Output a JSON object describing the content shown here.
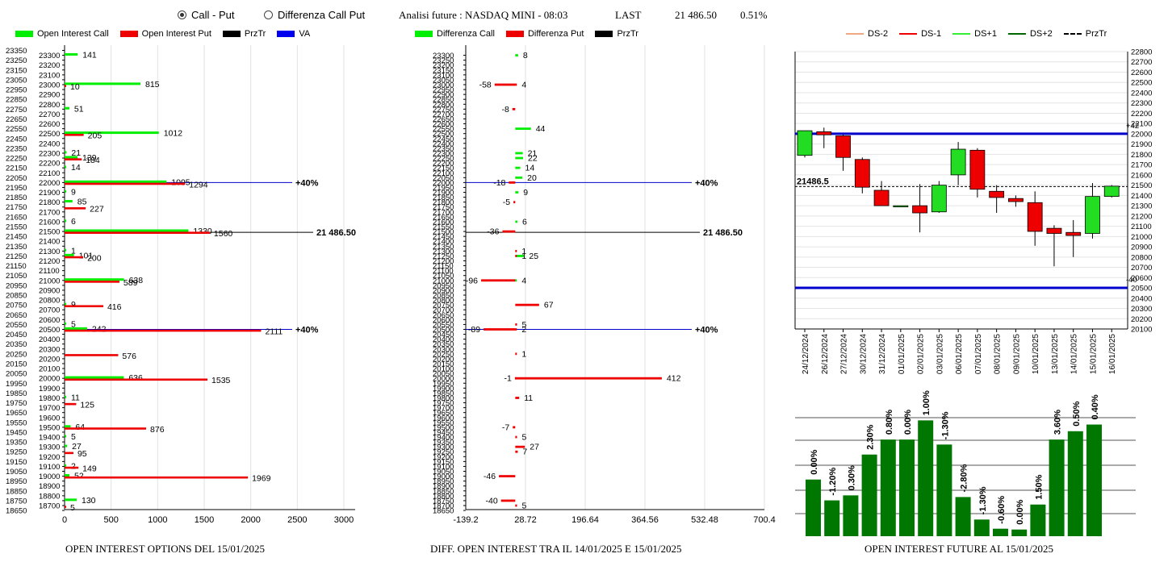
{
  "header": {
    "radio_call_put": "Call - Put",
    "radio_diff": "Differenza Call Put",
    "analysis_title": "Analisi future : NASDAQ MINI - 08:03",
    "last_label": "LAST",
    "last_value": "21 486.50",
    "last_change": "0.51%"
  },
  "legends": {
    "left": [
      {
        "label": "Open Interest Call",
        "color": "#00ee00"
      },
      {
        "label": "Open Interest Put",
        "color": "#ee0000"
      },
      {
        "label": "PrzTr",
        "color": "#000000"
      },
      {
        "label": "VA",
        "color": "#0000ee"
      }
    ],
    "middle": [
      {
        "label": "Differenza Call",
        "color": "#00ee00"
      },
      {
        "label": "Differenza Put",
        "color": "#ee0000"
      },
      {
        "label": "PrzTr",
        "color": "#000000"
      }
    ],
    "right": [
      {
        "label": "DS-2",
        "color": "#f4a582"
      },
      {
        "label": "DS-1",
        "color": "#ee0000"
      },
      {
        "label": "DS+1",
        "color": "#33ee33"
      },
      {
        "label": "DS+2",
        "color": "#006600"
      },
      {
        "label": "PrzTr",
        "color": "#000000"
      }
    ]
  },
  "footer": {
    "left": "OPEN INTEREST OPTIONS DEL 15/01/2025",
    "middle": "DIFF. OPEN INTEREST TRA IL 14/01/2025 E 15/01/2025",
    "right": "OPEN INTEREST FUTURE AL 15/01/2025"
  },
  "chart_data": [
    {
      "type": "bar",
      "orientation": "horizontal",
      "strikes": [
        "23350",
        "23300",
        "23250",
        "23200",
        "23150",
        "23100",
        "23050",
        "23000",
        "22950",
        "22900",
        "22850",
        "22800",
        "22750",
        "22700",
        "22650",
        "22600",
        "22550",
        "22500",
        "22450",
        "22400",
        "22350",
        "22300",
        "22250",
        "22200",
        "22150",
        "22100",
        "22050",
        "22000",
        "21950",
        "21900",
        "21850",
        "21800",
        "21750",
        "21700",
        "21650",
        "21600",
        "21550",
        "21500",
        "21450",
        "21400",
        "21350",
        "21300",
        "21250",
        "21200",
        "21150",
        "21100",
        "21050",
        "21000",
        "20950",
        "20900",
        "20850",
        "20800",
        "20750",
        "20700",
        "20650",
        "20600",
        "20550",
        "20500",
        "20450",
        "20400",
        "20350",
        "20300",
        "20250",
        "20200",
        "20150",
        "20100",
        "20050",
        "20000",
        "19950",
        "19900",
        "19850",
        "19800",
        "19750",
        "19700",
        "19650",
        "19600",
        "19550",
        "19500",
        "19450",
        "19400",
        "19350",
        "19300",
        "19250",
        "19200",
        "19150",
        "19100",
        "19050",
        "19000",
        "18950",
        "18900",
        "18850",
        "18800",
        "18750",
        "18700",
        "18650"
      ],
      "calls": [
        {
          "strike": "23300",
          "value": 141
        },
        {
          "strike": "23000",
          "value": 815
        },
        {
          "strike": "22750",
          "value": 51
        },
        {
          "strike": "22500",
          "value": 1012
        },
        {
          "strike": "22300",
          "value": 21
        },
        {
          "strike": "22250",
          "value": 139
        },
        {
          "strike": "22150",
          "value": 14
        },
        {
          "strike": "22000",
          "value": 1095
        },
        {
          "strike": "21900",
          "value": 9
        },
        {
          "strike": "21800",
          "value": 85
        },
        {
          "strike": "21600",
          "value": 6
        },
        {
          "strike": "21500",
          "value": 1330
        },
        {
          "strike": "21300",
          "value": 1
        },
        {
          "strike": "21250",
          "value": 101
        },
        {
          "strike": "21000",
          "value": 638
        },
        {
          "strike": "20750",
          "value": 9
        },
        {
          "strike": "20550",
          "value": 5
        },
        {
          "strike": "20500",
          "value": 242
        },
        {
          "strike": "20000",
          "value": 636
        },
        {
          "strike": "19800",
          "value": 11
        },
        {
          "strike": "19500",
          "value": 64
        },
        {
          "strike": "19400",
          "value": 5
        },
        {
          "strike": "19300",
          "value": 27
        },
        {
          "strike": "19100",
          "value": 2
        },
        {
          "strike": "19000",
          "value": 52
        },
        {
          "strike": "18750",
          "value": 130
        }
      ],
      "puts": [
        {
          "strike": "23000",
          "value": 10
        },
        {
          "strike": "22500",
          "value": 205
        },
        {
          "strike": "22250",
          "value": 184
        },
        {
          "strike": "22000",
          "value": 1294
        },
        {
          "strike": "21750",
          "value": 227
        },
        {
          "strike": "21500",
          "value": 1560
        },
        {
          "strike": "21250",
          "value": 200
        },
        {
          "strike": "21000",
          "value": 589
        },
        {
          "strike": "20750",
          "value": 416
        },
        {
          "strike": "20500",
          "value": 2111
        },
        {
          "strike": "20250",
          "value": 576
        },
        {
          "strike": "20000",
          "value": 1535
        },
        {
          "strike": "19750",
          "value": 125
        },
        {
          "strike": "19500",
          "value": 876
        },
        {
          "strike": "19250",
          "value": 95
        },
        {
          "strike": "19100",
          "value": 149
        },
        {
          "strike": "19000",
          "value": 1969
        },
        {
          "strike": "18700",
          "value": 5
        }
      ],
      "price_line": {
        "strike": "21500",
        "label": "21 486.50"
      },
      "va_lines": [
        {
          "strike": "22000",
          "label": "40%"
        },
        {
          "strike": "20500",
          "label": "40%"
        }
      ],
      "xlim": [
        0,
        3000
      ],
      "xticks": [
        "0",
        "500",
        "1000",
        "1500",
        "2000",
        "2500",
        "3000"
      ]
    },
    {
      "type": "bar",
      "orientation": "horizontal",
      "calls": [
        {
          "strike": "23300",
          "value": 8
        },
        {
          "strike": "22550",
          "value": 44
        },
        {
          "strike": "22300",
          "value": 21
        },
        {
          "strike": "22250",
          "value": 22
        },
        {
          "strike": "22150",
          "value": 14
        },
        {
          "strike": "22050",
          "value": 20
        },
        {
          "strike": "21900",
          "value": 9
        },
        {
          "strike": "21600",
          "value": 6
        },
        {
          "strike": "21250",
          "value": 25
        },
        {
          "strike": "21000",
          "value": 4
        }
      ],
      "puts": [
        {
          "strike": "23000",
          "value": -58
        },
        {
          "strike": "23000",
          "value": 4
        },
        {
          "strike": "22750",
          "value": -8
        },
        {
          "strike": "22000",
          "value": -18
        },
        {
          "strike": "21800",
          "value": -5
        },
        {
          "strike": "21500",
          "value": -36
        },
        {
          "strike": "21300",
          "value": 1
        },
        {
          "strike": "21250",
          "value": 1
        },
        {
          "strike": "21000",
          "value": -96
        },
        {
          "strike": "20750",
          "value": 67
        },
        {
          "strike": "20550",
          "value": 5
        },
        {
          "strike": "20500",
          "value": -89
        },
        {
          "strike": "20500",
          "value": 2
        },
        {
          "strike": "20250",
          "value": 1
        },
        {
          "strike": "20000",
          "value": 412
        },
        {
          "strike": "20000",
          "value": -1
        },
        {
          "strike": "19800",
          "value": 11
        },
        {
          "strike": "19500",
          "value": -7
        },
        {
          "strike": "19400",
          "value": 5
        },
        {
          "strike": "19300",
          "value": 27
        },
        {
          "strike": "19250",
          "value": 7
        },
        {
          "strike": "19000",
          "value": -46
        },
        {
          "strike": "18750",
          "value": -40
        },
        {
          "strike": "18700",
          "value": 5
        }
      ],
      "price_line": {
        "strike": "21500",
        "label": "21 486.50"
      },
      "va_lines": [
        {
          "strike": "22000",
          "label": "40%"
        },
        {
          "strike": "20500",
          "label": "40%"
        }
      ],
      "xlim": [
        -139.2,
        700.4
      ],
      "xticks": [
        "-139.2",
        "28.72",
        "196.64",
        "364.56",
        "532.48",
        "700.4"
      ]
    },
    {
      "type": "candlestick",
      "dates": [
        "24/12/2024",
        "26/12/2024",
        "27/12/2024",
        "30/12/2024",
        "31/12/2024",
        "01/01/2025",
        "02/01/2025",
        "03/01/2025",
        "06/01/2025",
        "07/01/2025",
        "08/01/2025",
        "09/01/2025",
        "10/01/2025",
        "13/01/2025",
        "14/01/2025",
        "15/01/2025",
        "16/01/2025"
      ],
      "ohlc": [
        [
          21790,
          22030,
          21770,
          22030
        ],
        [
          22020,
          22060,
          21860,
          21990
        ],
        [
          21980,
          21990,
          21640,
          21770
        ],
        [
          21750,
          21770,
          21420,
          21480
        ],
        [
          21450,
          21540,
          21320,
          21300
        ],
        [
          21300,
          21300,
          21290,
          21300
        ],
        [
          21300,
          21510,
          21040,
          21230
        ],
        [
          21240,
          21540,
          21230,
          21500
        ],
        [
          21600,
          21920,
          21500,
          21850
        ],
        [
          21840,
          21860,
          21380,
          21460
        ],
        [
          21440,
          21500,
          21230,
          21380
        ],
        [
          21370,
          21400,
          21290,
          21340
        ],
        [
          21330,
          21440,
          20910,
          21050
        ],
        [
          21080,
          21110,
          20710,
          21030
        ],
        [
          21040,
          21160,
          20800,
          21010
        ],
        [
          21030,
          21520,
          20980,
          21390
        ],
        [
          21390,
          21500,
          21380,
          21490
        ]
      ],
      "price_line": {
        "value": 21486.5,
        "label": "21486.5"
      },
      "bands": [
        {
          "value": 22000,
          "label": "+42"
        },
        {
          "value": 20500,
          "label": "-40"
        }
      ],
      "ylim": [
        20100,
        22800
      ],
      "ytick_step": 100
    },
    {
      "type": "bar",
      "categories": [
        "24/12/2024",
        "26/12/2024",
        "27/12/2024",
        "30/12/2024",
        "31/12/2024",
        "01/01/2025",
        "02/01/2025",
        "03/01/2025",
        "06/01/2025",
        "07/01/2025",
        "08/01/2025",
        "09/01/2025",
        "10/01/2025",
        "13/01/2025",
        "14/01/2025",
        "15/01/2025"
      ],
      "values": [
        68,
        43,
        49,
        98,
        116,
        116,
        139,
        110,
        47,
        20,
        9,
        8,
        38,
        116,
        126,
        134
      ],
      "labels": [
        "0.00%",
        "-1.20%",
        "0.30%",
        "2.30%",
        "0.80%",
        "0.00%",
        "1.00%",
        "-1.30%",
        "-2.80%",
        "-1.30%",
        "-0.60%",
        "0.00%",
        "1.50%",
        "3.60%",
        "0.50%",
        "0.40%"
      ],
      "color": "#007700"
    }
  ]
}
